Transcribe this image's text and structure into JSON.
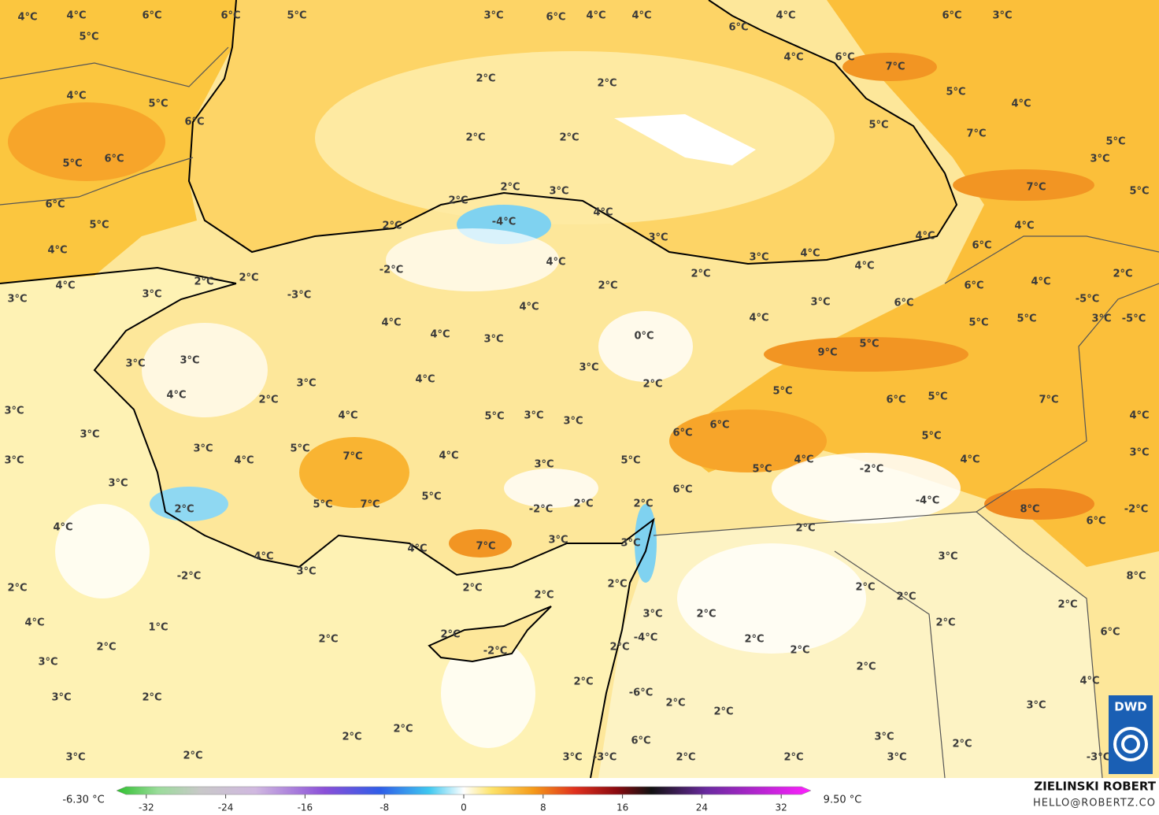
{
  "map": {
    "labels": [
      "4°C",
      "4°C",
      "6°C",
      "6°C",
      "5°C",
      "5°C",
      "3°C",
      "6°C",
      "4°C",
      "4°C",
      "4°C",
      "6°C",
      "3°C",
      "6°C",
      "4°C",
      "6°C",
      "7°C",
      "2°C",
      "2°C",
      "4°C",
      "5°C",
      "6°C",
      "5°C",
      "4°C",
      "5°C",
      "2°C",
      "2°C",
      "7°C",
      "5°C",
      "5°C",
      "6°C",
      "3°C",
      "7°C",
      "5°C",
      "2°C",
      "3°C",
      "2°C",
      "6°C",
      "4°C",
      "-4°C",
      "2°C",
      "5°C",
      "4°C",
      "3°C",
      "4°C",
      "6°C",
      "4°C",
      "4°C",
      "3°C",
      "4°C",
      "4°C",
      "-2°C",
      "2°C",
      "2°C",
      "2°C",
      "2°C",
      "6°C",
      "4°C",
      "4°C",
      "2°C",
      "3°C",
      "3°C",
      "-3°C",
      "3°C",
      "6°C",
      "-5°C",
      "4°C",
      "4°C",
      "5°C",
      "5°C",
      "3°C",
      "-5°C",
      "4°C",
      "4°C",
      "3°C",
      "0°C",
      "9°C",
      "5°C",
      "3°C",
      "3°C",
      "3°C",
      "4°C",
      "3°C",
      "2°C",
      "4°C",
      "2°C",
      "5°C",
      "6°C",
      "5°C",
      "7°C",
      "3°C",
      "4°C",
      "5°C",
      "3°C",
      "3°C",
      "6°C",
      "6°C",
      "4°C",
      "3°C",
      "3°C",
      "5°C",
      "5°C",
      "4°C",
      "7°C",
      "4°C",
      "3°C",
      "5°C",
      "4°C",
      "5°C",
      "-2°C",
      "4°C",
      "3°C",
      "3°C",
      "3°C",
      "6°C",
      "5°C",
      "7°C",
      "5°C",
      "-2°C",
      "2°C",
      "2°C",
      "-4°C",
      "8°C",
      "6°C",
      "-2°C",
      "2°C",
      "4°C",
      "2°C",
      "4°C",
      "7°C",
      "3°C",
      "3°C",
      "4°C",
      "3°C",
      "3°C",
      "8°C",
      "-2°C",
      "2°C",
      "2°C",
      "2°C",
      "2°C",
      "2°C",
      "2°C",
      "2°C",
      "4°C",
      "1°C",
      "3°C",
      "2°C",
      "2°C",
      "2°C",
      "2°C",
      "-4°C",
      "6°C",
      "2°C",
      "-2°C",
      "2°C",
      "2°C",
      "2°C",
      "2°C",
      "3°C",
      "2°C",
      "4°C",
      "3°C",
      "2°C",
      "-6°C",
      "2°C",
      "3°C",
      "2°C",
      "2°C",
      "2°C",
      "6°C",
      "3°C",
      "2°C",
      "3°C",
      "2°C",
      "3°C",
      "-3°C",
      "2°C",
      "2°C",
      "3°C",
      "-3°C"
    ]
  },
  "legend": {
    "min_label": "-6.30 °C",
    "max_label": "9.50 °C",
    "ticks": [
      -32,
      -24,
      -16,
      -8,
      0,
      8,
      16,
      24,
      32
    ],
    "lim": [
      -35,
      35
    ]
  },
  "credit": {
    "author": "ZIELINSKI ROBERT",
    "contact": "HELLO@ROBERTZ.CO",
    "logo": "DWD"
  }
}
